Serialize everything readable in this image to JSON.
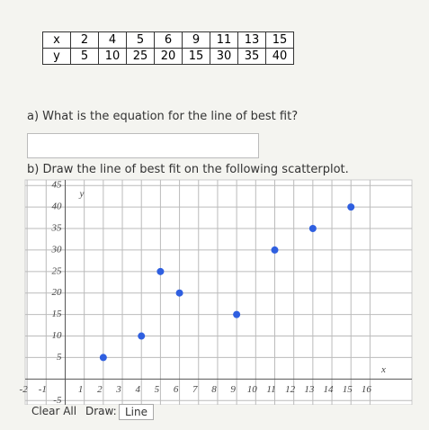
{
  "table": {
    "rows": [
      [
        "x",
        "2",
        "4",
        "5",
        "6",
        "9",
        "11",
        "13",
        "15"
      ],
      [
        "y",
        "5",
        "10",
        "25",
        "20",
        "15",
        "30",
        "35",
        "40"
      ]
    ]
  },
  "question_a": "a) What is the equation for the line of best fit?",
  "question_b": "b) Draw the line of best fit on the following scatterplot.",
  "chart_data": {
    "type": "scatter",
    "x_label": "x",
    "y_label": "y",
    "series": [
      {
        "color": "#2f5fe0",
        "x": [
          2,
          4,
          5,
          6,
          9,
          11,
          13,
          15
        ],
        "values": [
          5,
          10,
          25,
          20,
          15,
          30,
          35,
          40
        ]
      }
    ],
    "xlim": [
      -2.1,
      18.2
    ],
    "ylim": [
      -6,
      46.3
    ],
    "xticks": [
      -2,
      -1,
      1,
      2,
      3,
      4,
      5,
      6,
      7,
      8,
      9,
      10,
      11,
      12,
      13,
      14,
      15,
      16
    ],
    "yticks": [
      -5,
      5,
      10,
      15,
      20,
      25,
      30,
      35,
      40,
      45
    ],
    "grid": true
  },
  "controls": {
    "clear": "Clear All",
    "draw": "Draw:",
    "tool": "Line"
  }
}
